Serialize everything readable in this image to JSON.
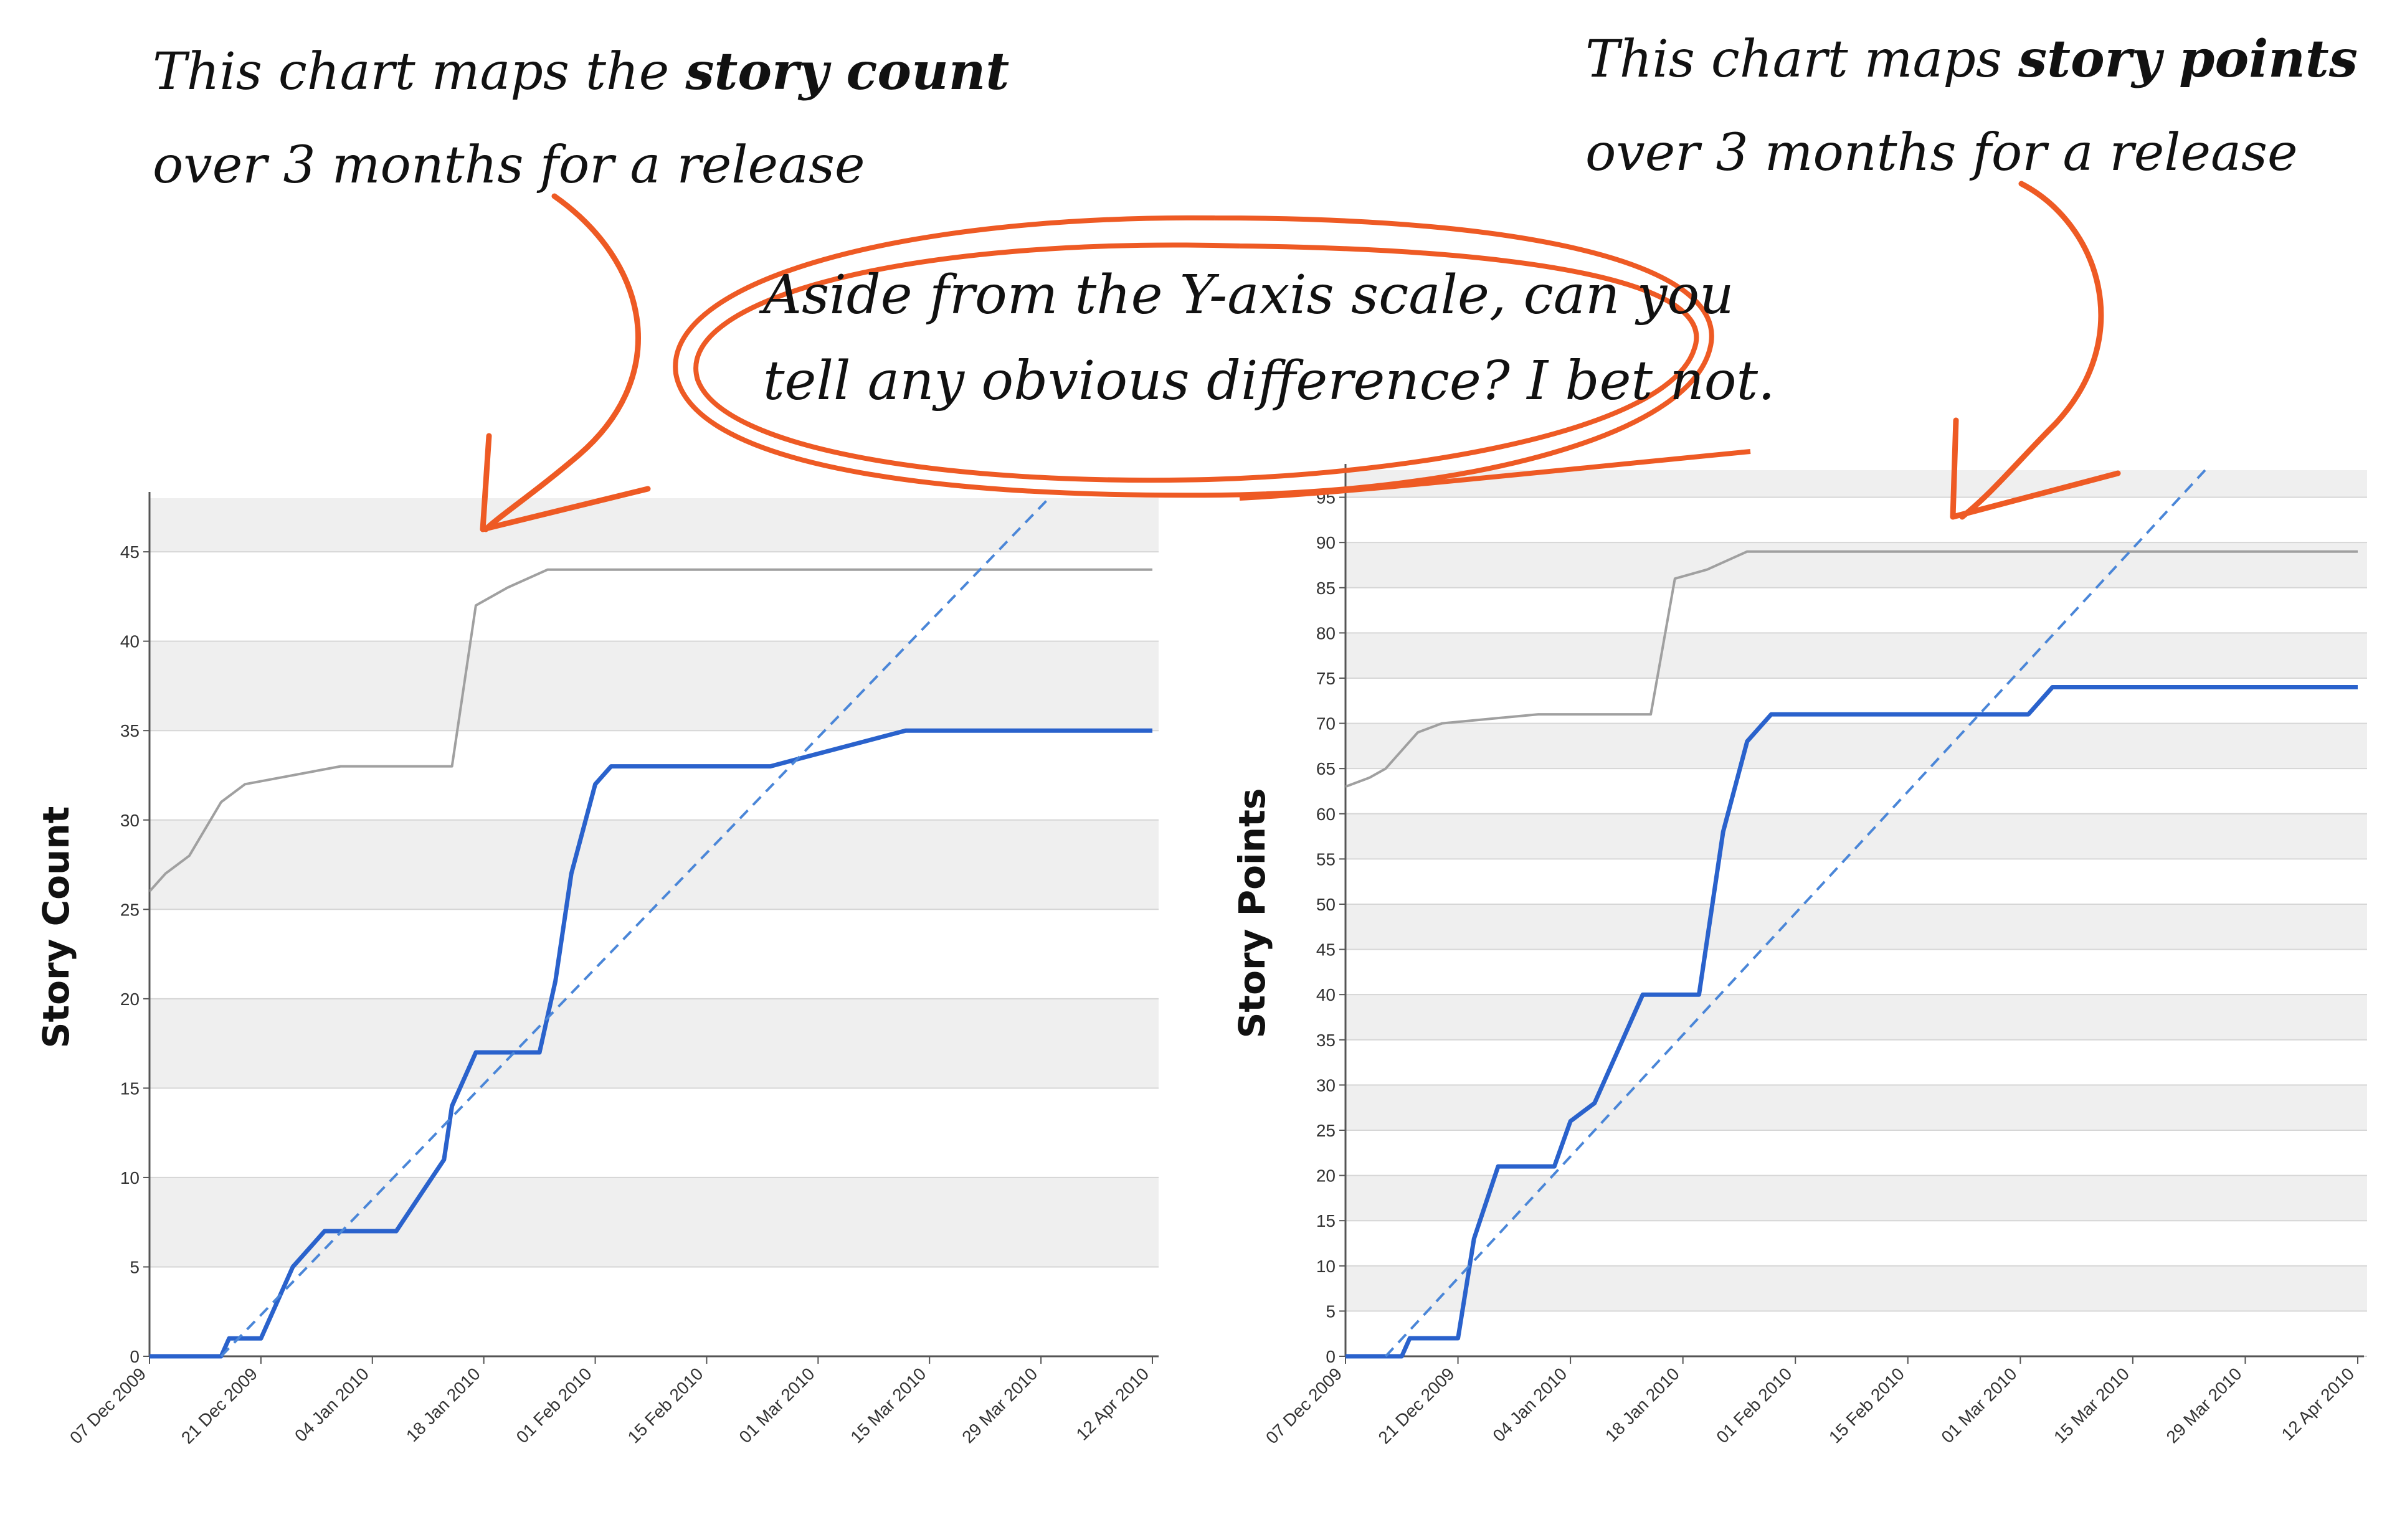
{
  "annotations": {
    "left_note": {
      "line1_pre": "This chart maps the ",
      "line1_bold": "story count",
      "line2": "over 3 months for a release"
    },
    "right_note": {
      "line1_pre": "This chart maps ",
      "line1_bold": "story points",
      "line2": "over 3 months for a release"
    },
    "center_note": {
      "line1": "Aside from the Y-axis scale, can you",
      "line2": "tell any obvious difference? I bet not."
    },
    "ink_color": "#ee5a24"
  },
  "chart_data": [
    {
      "type": "line",
      "ylabel": "Story Count",
      "x_ticks": [
        "07 Dec 2009",
        "21 Dec 2009",
        "04 Jan 2010",
        "18 Jan 2010",
        "01 Feb 2010",
        "15 Feb 2010",
        "01 Mar 2010",
        "15 Mar 2010",
        "29 Mar 2010",
        "12 Apr 2010"
      ],
      "xlim": [
        "2009-12-07",
        "2010-04-12"
      ],
      "ylim": [
        0,
        48
      ],
      "y_ticks": [
        0,
        5,
        10,
        15,
        20,
        25,
        30,
        35,
        40,
        45
      ],
      "grid": "alternating horizontal bands",
      "series": [
        {
          "role": "total scope",
          "color": "#a0a0a0",
          "style": "solid",
          "points": [
            [
              "2009-12-07",
              26
            ],
            [
              "2009-12-09",
              27
            ],
            [
              "2009-12-12",
              28
            ],
            [
              "2009-12-16",
              31
            ],
            [
              "2009-12-19",
              32
            ],
            [
              "2009-12-31",
              33
            ],
            [
              "2010-01-14",
              33
            ],
            [
              "2010-01-17",
              42
            ],
            [
              "2010-01-21",
              43
            ],
            [
              "2010-01-26",
              44
            ],
            [
              "2010-04-12",
              44
            ]
          ]
        },
        {
          "role": "completed",
          "color": "#2a62cc",
          "style": "solid",
          "points": [
            [
              "2009-12-07",
              0
            ],
            [
              "2009-12-16",
              0
            ],
            [
              "2009-12-17",
              1
            ],
            [
              "2009-12-21",
              1
            ],
            [
              "2009-12-25",
              5
            ],
            [
              "2009-12-29",
              7
            ],
            [
              "2010-01-07",
              7
            ],
            [
              "2010-01-10",
              9
            ],
            [
              "2010-01-13",
              11
            ],
            [
              "2010-01-14",
              14
            ],
            [
              "2010-01-17",
              17
            ],
            [
              "2010-01-25",
              17
            ],
            [
              "2010-01-27",
              21
            ],
            [
              "2010-01-29",
              27
            ],
            [
              "2010-02-01",
              32
            ],
            [
              "2010-02-03",
              33
            ],
            [
              "2010-02-23",
              33
            ],
            [
              "2010-03-12",
              35
            ],
            [
              "2010-04-12",
              35
            ]
          ]
        },
        {
          "role": "trend",
          "color": "#4a86d8",
          "style": "dashed",
          "points": [
            [
              "2009-12-16",
              0
            ],
            [
              "2010-03-30",
              48
            ]
          ]
        }
      ]
    },
    {
      "type": "line",
      "ylabel": "Story Points",
      "x_ticks": [
        "07 Dec 2009",
        "21 Dec 2009",
        "04 Jan 2010",
        "18 Jan 2010",
        "01 Feb 2010",
        "15 Feb 2010",
        "01 Mar 2010",
        "15 Mar 2010",
        "29 Mar 2010",
        "12 Apr 2010"
      ],
      "xlim": [
        "2009-12-07",
        "2010-04-12"
      ],
      "ylim": [
        0,
        98
      ],
      "y_ticks": [
        0,
        5,
        10,
        15,
        20,
        25,
        30,
        35,
        40,
        45,
        50,
        55,
        60,
        65,
        70,
        75,
        80,
        85,
        90,
        95
      ],
      "grid": "alternating horizontal bands",
      "series": [
        {
          "role": "total scope",
          "color": "#a0a0a0",
          "style": "solid",
          "points": [
            [
              "2009-12-07",
              63
            ],
            [
              "2009-12-10",
              64
            ],
            [
              "2009-12-12",
              65
            ],
            [
              "2009-12-16",
              69
            ],
            [
              "2009-12-19",
              70
            ],
            [
              "2009-12-31",
              71
            ],
            [
              "2010-01-14",
              71
            ],
            [
              "2010-01-17",
              86
            ],
            [
              "2010-01-21",
              87
            ],
            [
              "2010-01-26",
              89
            ],
            [
              "2010-04-12",
              89
            ]
          ]
        },
        {
          "role": "completed",
          "color": "#2a62cc",
          "style": "solid",
          "points": [
            [
              "2009-12-07",
              0
            ],
            [
              "2009-12-14",
              0
            ],
            [
              "2009-12-15",
              2
            ],
            [
              "2009-12-21",
              2
            ],
            [
              "2009-12-23",
              13
            ],
            [
              "2009-12-26",
              21
            ],
            [
              "2010-01-02",
              21
            ],
            [
              "2010-01-04",
              26
            ],
            [
              "2010-01-07",
              28
            ],
            [
              "2010-01-10",
              34
            ],
            [
              "2010-01-13",
              40
            ],
            [
              "2010-01-20",
              40
            ],
            [
              "2010-01-23",
              58
            ],
            [
              "2010-01-26",
              68
            ],
            [
              "2010-01-29",
              71
            ],
            [
              "2010-03-02",
              71
            ],
            [
              "2010-03-05",
              74
            ],
            [
              "2010-04-12",
              74
            ]
          ]
        },
        {
          "role": "trend",
          "color": "#4a86d8",
          "style": "dashed",
          "points": [
            [
              "2009-12-12",
              0
            ],
            [
              "2010-03-24",
              98
            ]
          ]
        }
      ]
    }
  ]
}
